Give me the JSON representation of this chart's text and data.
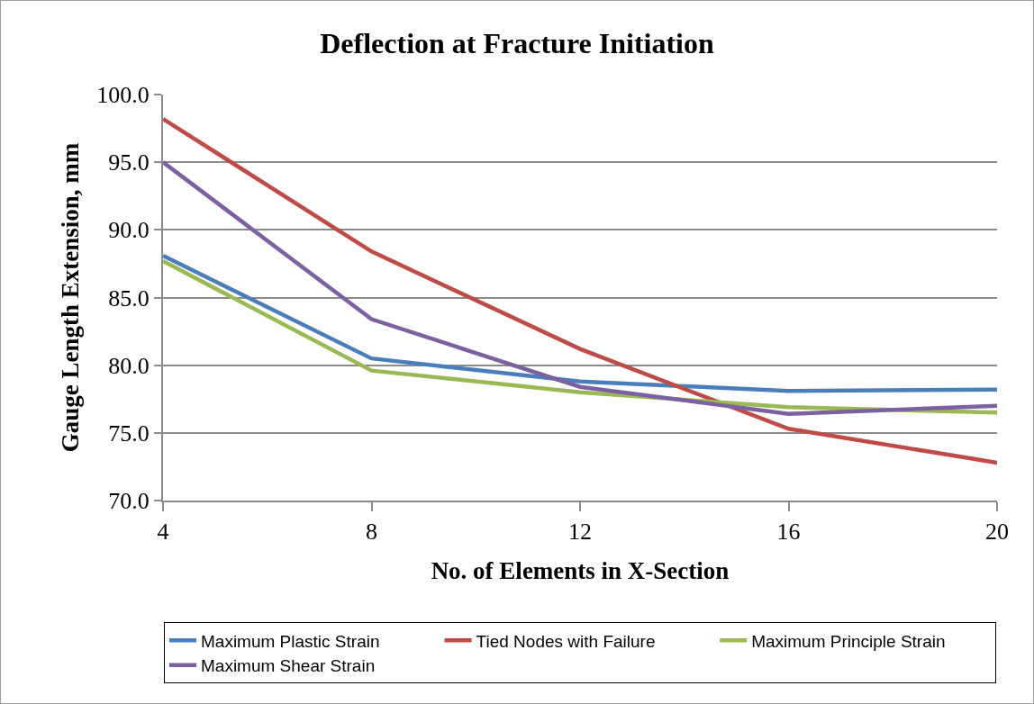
{
  "chart_data": {
    "type": "line",
    "title": "Deflection at Fracture Initiation",
    "xlabel": "No. of Elements in X-Section",
    "ylabel": "Gauge Length Extension, mm",
    "x": [
      4,
      8,
      12,
      16,
      20
    ],
    "series": [
      {
        "name": "Maximum Plastic Strain",
        "color": "#4a7ebb",
        "values": [
          88.1,
          80.5,
          78.8,
          78.1,
          78.2
        ]
      },
      {
        "name": "Tied Nodes with Failure",
        "color": "#be4b48",
        "values": [
          98.2,
          88.4,
          81.2,
          75.3,
          72.8
        ]
      },
      {
        "name": "Maximum Principle Strain",
        "color": "#98b954",
        "values": [
          87.7,
          79.6,
          78.0,
          76.9,
          76.5
        ]
      },
      {
        "name": "Maximum Shear Strain",
        "color": "#7d60a0",
        "values": [
          95.0,
          83.4,
          78.4,
          76.4,
          77.0
        ]
      }
    ],
    "xlim": [
      4,
      20
    ],
    "xticks": [
      4,
      8,
      12,
      16,
      20
    ],
    "ylim": [
      70,
      100
    ],
    "yticks": [
      {
        "value": 70,
        "label": "70.0"
      },
      {
        "value": 75,
        "label": "75.0"
      },
      {
        "value": 80,
        "label": "80.0"
      },
      {
        "value": 85,
        "label": "85.0"
      },
      {
        "value": 90,
        "label": "90.0"
      },
      {
        "value": 95,
        "label": "95.0"
      },
      {
        "value": 100,
        "label": "100.0"
      }
    ],
    "grid": "y",
    "legend": "bottom",
    "marker": "none",
    "line_style": "solid"
  }
}
